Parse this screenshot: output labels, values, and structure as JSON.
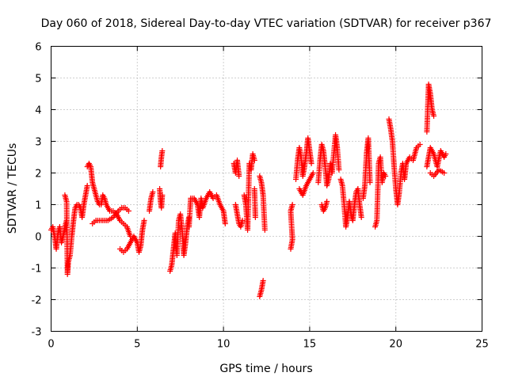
{
  "chart_data": {
    "type": "scatter",
    "title": "Day 060 of 2018, Sidereal Day-to-day VTEC variation (SDTVAR) for receiver p367",
    "xlabel": "GPS time / hours",
    "ylabel": "SDTVAR / TECUs",
    "xlim": [
      0,
      25
    ],
    "ylim": [
      -3,
      6
    ],
    "x_ticks": [
      0,
      5,
      10,
      15,
      20,
      25
    ],
    "y_ticks": [
      -3,
      -2,
      -1,
      0,
      1,
      2,
      3,
      4,
      5,
      6
    ],
    "x_tick_labels": [
      "0",
      "5",
      "10",
      "15",
      "20",
      "25"
    ],
    "y_tick_labels": [
      "-3",
      "-2",
      "-1",
      "0",
      "1",
      "2",
      "3",
      "4",
      "5",
      "6"
    ],
    "grid": true,
    "marker": "plus",
    "series": [
      {
        "name": "SDTVAR",
        "color": "#ff0000",
        "segments": [
          [
            [
              0.0,
              0.2
            ],
            [
              0.1,
              0.3
            ],
            [
              0.2,
              0.0
            ],
            [
              0.3,
              -0.4
            ],
            [
              0.4,
              0.1
            ],
            [
              0.5,
              0.3
            ],
            [
              0.6,
              -0.2
            ],
            [
              0.7,
              0.0
            ],
            [
              0.8,
              0.3
            ],
            [
              0.9,
              0.5
            ]
          ],
          [
            [
              0.8,
              1.3
            ],
            [
              0.9,
              1.1
            ],
            [
              0.95,
              -1.2
            ],
            [
              1.0,
              -0.8
            ],
            [
              1.1,
              -0.6
            ],
            [
              1.2,
              0.0
            ],
            [
              1.3,
              0.5
            ],
            [
              1.4,
              0.9
            ],
            [
              1.5,
              1.0
            ],
            [
              1.6,
              1.0
            ],
            [
              1.7,
              0.9
            ],
            [
              1.8,
              0.6
            ],
            [
              1.9,
              1.0
            ],
            [
              2.0,
              1.3
            ],
            [
              2.1,
              1.6
            ]
          ],
          [
            [
              2.1,
              2.2
            ],
            [
              2.2,
              2.3
            ],
            [
              2.3,
              2.2
            ],
            [
              2.4,
              1.7
            ],
            [
              2.5,
              1.5
            ],
            [
              2.6,
              1.3
            ],
            [
              2.7,
              1.1
            ],
            [
              2.8,
              1.0
            ],
            [
              2.9,
              1.0
            ],
            [
              3.0,
              1.3
            ],
            [
              3.1,
              1.2
            ],
            [
              3.2,
              1.0
            ],
            [
              3.4,
              0.8
            ],
            [
              3.6,
              0.8
            ],
            [
              3.8,
              0.7
            ],
            [
              4.0,
              0.5
            ],
            [
              4.2,
              0.4
            ],
            [
              4.4,
              0.3
            ],
            [
              4.6,
              0.0
            ]
          ],
          [
            [
              2.4,
              0.4
            ],
            [
              2.6,
              0.5
            ],
            [
              2.8,
              0.5
            ],
            [
              3.0,
              0.5
            ],
            [
              3.3,
              0.5
            ],
            [
              3.6,
              0.6
            ],
            [
              3.9,
              0.8
            ],
            [
              4.1,
              0.9
            ],
            [
              4.3,
              0.9
            ],
            [
              4.5,
              0.8
            ]
          ],
          [
            [
              4.0,
              -0.4
            ],
            [
              4.2,
              -0.5
            ],
            [
              4.4,
              -0.4
            ],
            [
              4.6,
              -0.2
            ],
            [
              4.8,
              0.0
            ],
            [
              5.0,
              -0.2
            ],
            [
              5.1,
              -0.5
            ],
            [
              5.2,
              -0.3
            ],
            [
              5.3,
              0.2
            ],
            [
              5.4,
              0.5
            ]
          ],
          [
            [
              5.7,
              0.8
            ],
            [
              5.8,
              1.2
            ],
            [
              5.9,
              1.4
            ]
          ],
          [
            [
              6.3,
              1.5
            ],
            [
              6.35,
              1.1
            ],
            [
              6.4,
              0.9
            ],
            [
              6.45,
              1.3
            ]
          ],
          [
            [
              6.35,
              2.2
            ],
            [
              6.4,
              2.5
            ],
            [
              6.45,
              2.7
            ]
          ],
          [
            [
              6.9,
              -1.1
            ],
            [
              7.0,
              -0.9
            ],
            [
              7.1,
              -0.4
            ],
            [
              7.2,
              0.1
            ],
            [
              7.3,
              -0.6
            ],
            [
              7.4,
              0.5
            ],
            [
              7.5,
              0.7
            ],
            [
              7.6,
              0.2
            ],
            [
              7.7,
              -0.6
            ],
            [
              7.8,
              -0.2
            ],
            [
              7.9,
              0.3
            ],
            [
              8.0,
              0.6
            ]
          ],
          [
            [
              8.0,
              0.3
            ],
            [
              8.1,
              1.2
            ],
            [
              8.3,
              1.2
            ],
            [
              8.5,
              1.0
            ],
            [
              8.6,
              0.6
            ],
            [
              8.7,
              1.2
            ],
            [
              8.8,
              0.9
            ],
            [
              9.0,
              1.2
            ],
            [
              9.2,
              1.4
            ],
            [
              9.4,
              1.2
            ],
            [
              9.6,
              1.3
            ],
            [
              9.8,
              1.0
            ],
            [
              10.0,
              0.8
            ],
            [
              10.1,
              0.4
            ]
          ],
          [
            [
              10.6,
              2.3
            ],
            [
              10.7,
              2.0
            ],
            [
              10.8,
              2.4
            ],
            [
              10.9,
              1.9
            ]
          ],
          [
            [
              10.7,
              1.0
            ],
            [
              10.8,
              0.7
            ],
            [
              10.9,
              0.4
            ],
            [
              11.0,
              0.3
            ],
            [
              11.1,
              0.5
            ]
          ],
          [
            [
              11.2,
              1.3
            ],
            [
              11.3,
              1.0
            ],
            [
              11.4,
              0.2
            ],
            [
              11.5,
              2.3
            ],
            [
              11.6,
              2.1
            ],
            [
              11.7,
              2.6
            ],
            [
              11.8,
              2.4
            ]
          ],
          [
            [
              11.8,
              1.5
            ],
            [
              11.85,
              0.6
            ]
          ],
          [
            [
              12.1,
              -1.9
            ],
            [
              12.2,
              -1.7
            ],
            [
              12.3,
              -1.4
            ]
          ],
          [
            [
              12.1,
              1.9
            ],
            [
              12.2,
              1.7
            ],
            [
              12.3,
              1.3
            ],
            [
              12.4,
              0.2
            ]
          ],
          [
            [
              13.9,
              -0.4
            ],
            [
              14.0,
              -0.1
            ],
            [
              13.9,
              0.8
            ],
            [
              14.0,
              1.0
            ]
          ],
          [
            [
              14.2,
              1.8
            ],
            [
              14.3,
              2.4
            ],
            [
              14.4,
              2.8
            ],
            [
              14.5,
              2.5
            ],
            [
              14.6,
              1.9
            ],
            [
              14.7,
              2.2
            ],
            [
              14.8,
              2.6
            ],
            [
              14.9,
              3.1
            ],
            [
              15.0,
              2.7
            ],
            [
              15.1,
              2.3
            ]
          ],
          [
            [
              14.4,
              1.5
            ],
            [
              14.6,
              1.3
            ],
            [
              14.8,
              1.6
            ],
            [
              15.0,
              1.8
            ],
            [
              15.2,
              2.0
            ]
          ],
          [
            [
              15.5,
              1.7
            ],
            [
              15.6,
              2.4
            ],
            [
              15.7,
              2.9
            ],
            [
              15.8,
              2.7
            ],
            [
              15.9,
              2.2
            ],
            [
              16.0,
              1.6
            ],
            [
              16.1,
              1.8
            ],
            [
              16.2,
              2.3
            ],
            [
              16.3,
              2.0
            ],
            [
              16.4,
              2.6
            ],
            [
              16.5,
              3.2
            ],
            [
              16.6,
              2.8
            ],
            [
              16.7,
              2.1
            ]
          ],
          [
            [
              15.7,
              1.0
            ],
            [
              15.8,
              0.8
            ],
            [
              15.9,
              0.9
            ],
            [
              16.0,
              1.1
            ]
          ],
          [
            [
              16.8,
              1.8
            ],
            [
              16.9,
              1.6
            ],
            [
              17.0,
              1.0
            ],
            [
              17.1,
              0.3
            ],
            [
              17.2,
              0.6
            ],
            [
              17.3,
              1.1
            ],
            [
              17.4,
              0.7
            ],
            [
              17.5,
              0.5
            ],
            [
              17.6,
              1.0
            ],
            [
              17.7,
              1.4
            ],
            [
              17.8,
              1.5
            ],
            [
              17.9,
              1.0
            ],
            [
              18.0,
              0.6
            ]
          ],
          [
            [
              18.1,
              1.2
            ],
            [
              18.2,
              1.6
            ],
            [
              18.3,
              2.6
            ],
            [
              18.4,
              3.1
            ],
            [
              18.5,
              1.7
            ]
          ],
          [
            [
              18.8,
              0.3
            ],
            [
              18.9,
              0.5
            ],
            [
              19.0,
              2.3
            ],
            [
              19.1,
              2.5
            ],
            [
              19.2,
              1.7
            ],
            [
              19.3,
              2.0
            ],
            [
              19.4,
              1.9
            ]
          ],
          [
            [
              19.6,
              3.7
            ],
            [
              19.7,
              3.4
            ],
            [
              19.8,
              3.0
            ],
            [
              19.9,
              2.2
            ],
            [
              20.0,
              1.5
            ],
            [
              20.1,
              1.0
            ],
            [
              20.2,
              1.4
            ],
            [
              20.3,
              2.0
            ],
            [
              20.4,
              2.3
            ],
            [
              20.5,
              1.8
            ],
            [
              20.6,
              2.3
            ],
            [
              20.8,
              2.5
            ],
            [
              21.0,
              2.4
            ],
            [
              21.2,
              2.8
            ],
            [
              21.4,
              2.9
            ]
          ],
          [
            [
              21.8,
              3.3
            ],
            [
              21.9,
              4.8
            ],
            [
              22.0,
              4.5
            ],
            [
              22.1,
              4.0
            ],
            [
              22.2,
              3.8
            ]
          ],
          [
            [
              21.8,
              2.2
            ],
            [
              21.9,
              2.5
            ],
            [
              22.0,
              2.8
            ],
            [
              22.2,
              2.6
            ],
            [
              22.4,
              2.2
            ],
            [
              22.6,
              2.7
            ],
            [
              22.8,
              2.5
            ],
            [
              22.9,
              2.6
            ]
          ],
          [
            [
              22.0,
              2.0
            ],
            [
              22.2,
              1.9
            ],
            [
              22.5,
              2.1
            ],
            [
              22.8,
              2.0
            ]
          ]
        ]
      }
    ]
  }
}
